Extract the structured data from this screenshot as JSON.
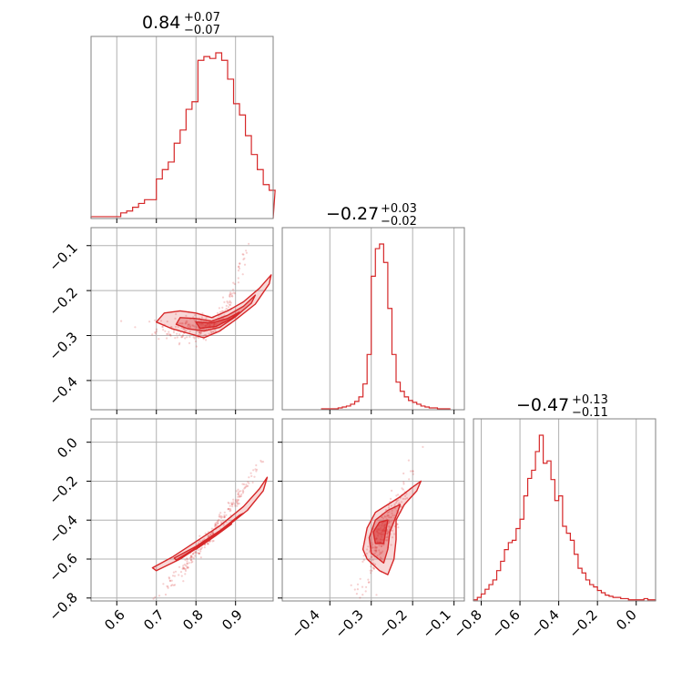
{
  "chart_data": {
    "type": "corner",
    "accent_color": "#d62728",
    "grid": true,
    "ticks": {
      "p0": [
        "0.6",
        "0.7",
        "0.8",
        "0.9"
      ],
      "p1": [
        "−0.4",
        "−0.3",
        "−0.2",
        "−0.1"
      ],
      "p2": [
        "−0.8",
        "−0.6",
        "−0.4",
        "−0.2",
        "0.0"
      ]
    },
    "marginals": [
      {
        "title_main": "0.84",
        "title_plus": "+0.07",
        "title_minus": "−0.07",
        "median": 0.84,
        "err_plus": 0.07,
        "err_minus": 0.07,
        "range": [
          0.535,
          0.995
        ],
        "bins_x": [
          0.535,
          0.55,
          0.565,
          0.58,
          0.595,
          0.61,
          0.625,
          0.64,
          0.655,
          0.67,
          0.685,
          0.7,
          0.715,
          0.73,
          0.745,
          0.76,
          0.775,
          0.79,
          0.805,
          0.82,
          0.835,
          0.85,
          0.865,
          0.88,
          0.895,
          0.91,
          0.925,
          0.94,
          0.955,
          0.97,
          0.985
        ],
        "counts": [
          1,
          1,
          1,
          1,
          1,
          3,
          4,
          6,
          8,
          10,
          10,
          21,
          26,
          30,
          40,
          47,
          58,
          62,
          84,
          86,
          85,
          88,
          84,
          74,
          61,
          55,
          44,
          34,
          26,
          18,
          15
        ]
      },
      {
        "title_main": "−0.27",
        "title_plus": "+0.03",
        "title_minus": "−0.02",
        "median": -0.27,
        "err_plus": 0.03,
        "err_minus": 0.02,
        "range": [
          -0.515,
          -0.075
        ],
        "bins_x": [
          -0.42,
          -0.41,
          -0.4,
          -0.39,
          -0.38,
          -0.37,
          -0.36,
          -0.35,
          -0.34,
          -0.33,
          -0.32,
          -0.31,
          -0.3,
          -0.29,
          -0.28,
          -0.27,
          -0.26,
          -0.25,
          -0.24,
          -0.23,
          -0.22,
          -0.21,
          -0.2,
          -0.19,
          -0.18,
          -0.17,
          -0.16,
          -0.15,
          -0.14,
          -0.13,
          -0.12
        ],
        "counts": [
          1,
          1,
          1,
          1,
          2,
          3,
          4,
          6,
          9,
          14,
          28,
          60,
          145,
          175,
          180,
          160,
          110,
          60,
          30,
          20,
          14,
          10,
          8,
          6,
          4,
          3,
          2,
          2,
          1,
          1,
          1
        ]
      },
      {
        "title_main": "−0.47",
        "title_plus": "+0.13",
        "title_minus": "−0.11",
        "median": -0.47,
        "err_plus": 0.13,
        "err_minus": 0.11,
        "range": [
          -0.84,
          0.1
        ],
        "bins_x": [
          -0.84,
          -0.82,
          -0.8,
          -0.78,
          -0.76,
          -0.74,
          -0.72,
          -0.7,
          -0.68,
          -0.66,
          -0.64,
          -0.62,
          -0.6,
          -0.58,
          -0.56,
          -0.54,
          -0.52,
          -0.5,
          -0.48,
          -0.46,
          -0.44,
          -0.42,
          -0.4,
          -0.38,
          -0.36,
          -0.34,
          -0.32,
          -0.3,
          -0.28,
          -0.26,
          -0.24,
          -0.22,
          -0.2,
          -0.18,
          -0.16,
          -0.14,
          -0.12,
          -0.1,
          -0.08,
          -0.06,
          -0.04,
          -0.02,
          0.0,
          0.02,
          0.04,
          0.06,
          0.08
        ],
        "counts": [
          1,
          3,
          6,
          10,
          14,
          18,
          26,
          34,
          44,
          50,
          52,
          62,
          70,
          90,
          105,
          112,
          128,
          142,
          118,
          120,
          104,
          86,
          90,
          64,
          58,
          52,
          40,
          28,
          24,
          18,
          14,
          12,
          9,
          7,
          5,
          4,
          3,
          3,
          2,
          2,
          1,
          1,
          1,
          1,
          2,
          1,
          1
        ]
      }
    ],
    "pairs": [
      {
        "x_param": 0,
        "y_param": 1,
        "xrange": [
          0.535,
          0.995
        ],
        "yrange": [
          -0.465,
          -0.06
        ],
        "curve": {
          "x0": 0.82,
          "y0": -0.285,
          "k": 6.0,
          "scatter_x": 0.06,
          "scatter_y": 0.015
        },
        "contours": [
          [
            [
              0.72,
              -0.25
            ],
            [
              0.76,
              -0.245
            ],
            [
              0.8,
              -0.25
            ],
            [
              0.84,
              -0.26
            ],
            [
              0.88,
              -0.245
            ],
            [
              0.92,
              -0.225
            ],
            [
              0.96,
              -0.195
            ],
            [
              0.99,
              -0.165
            ],
            [
              0.985,
              -0.185
            ],
            [
              0.95,
              -0.23
            ],
            [
              0.9,
              -0.265
            ],
            [
              0.86,
              -0.29
            ],
            [
              0.82,
              -0.305
            ],
            [
              0.78,
              -0.295
            ],
            [
              0.74,
              -0.285
            ],
            [
              0.7,
              -0.27
            ]
          ],
          [
            [
              0.76,
              -0.26
            ],
            [
              0.8,
              -0.262
            ],
            [
              0.84,
              -0.268
            ],
            [
              0.88,
              -0.255
            ],
            [
              0.92,
              -0.235
            ],
            [
              0.95,
              -0.21
            ],
            [
              0.94,
              -0.228
            ],
            [
              0.9,
              -0.258
            ],
            [
              0.86,
              -0.282
            ],
            [
              0.82,
              -0.29
            ],
            [
              0.78,
              -0.285
            ],
            [
              0.75,
              -0.275
            ]
          ],
          [
            [
              0.8,
              -0.27
            ],
            [
              0.84,
              -0.272
            ],
            [
              0.88,
              -0.262
            ],
            [
              0.91,
              -0.248
            ],
            [
              0.89,
              -0.262
            ],
            [
              0.85,
              -0.28
            ],
            [
              0.81,
              -0.284
            ]
          ]
        ]
      },
      {
        "x_param": 0,
        "y_param": 2,
        "xrange": [
          0.535,
          0.995
        ],
        "yrange": [
          -0.815,
          0.12
        ],
        "curve": {
          "x0": 0.84,
          "y0": -0.47,
          "k": 2.6,
          "scatter_x": 0.07,
          "scatter_y": 0.02
        },
        "contours": [
          [
            [
              0.7,
              -0.66
            ],
            [
              0.76,
              -0.6
            ],
            [
              0.82,
              -0.52
            ],
            [
              0.88,
              -0.43
            ],
            [
              0.93,
              -0.35
            ],
            [
              0.97,
              -0.25
            ],
            [
              0.98,
              -0.18
            ],
            [
              0.96,
              -0.24
            ],
            [
              0.92,
              -0.33
            ],
            [
              0.86,
              -0.43
            ],
            [
              0.8,
              -0.51
            ],
            [
              0.74,
              -0.59
            ],
            [
              0.69,
              -0.645
            ]
          ],
          [
            [
              0.75,
              -0.605
            ],
            [
              0.81,
              -0.53
            ],
            [
              0.87,
              -0.445
            ],
            [
              0.92,
              -0.365
            ],
            [
              0.91,
              -0.375
            ],
            [
              0.86,
              -0.455
            ],
            [
              0.8,
              -0.535
            ],
            [
              0.745,
              -0.595
            ]
          ],
          [
            [
              0.8,
              -0.55
            ],
            [
              0.85,
              -0.48
            ],
            [
              0.89,
              -0.42
            ],
            [
              0.88,
              -0.43
            ],
            [
              0.84,
              -0.49
            ],
            [
              0.795,
              -0.545
            ]
          ]
        ]
      },
      {
        "x_param": 1,
        "y_param": 2,
        "xrange": [
          -0.515,
          -0.075
        ],
        "yrange": [
          -0.815,
          0.12
        ],
        "curve": {
          "x0": -0.27,
          "y0": -0.47,
          "k": 4.2,
          "scatter_x": 0.03,
          "scatter_y": 0.06
        },
        "contours": [
          [
            [
              -0.31,
              -0.6
            ],
            [
              -0.32,
              -0.55
            ],
            [
              -0.31,
              -0.44
            ],
            [
              -0.29,
              -0.36
            ],
            [
              -0.26,
              -0.32
            ],
            [
              -0.23,
              -0.28
            ],
            [
              -0.2,
              -0.23
            ],
            [
              -0.18,
              -0.2
            ],
            [
              -0.19,
              -0.25
            ],
            [
              -0.22,
              -0.32
            ],
            [
              -0.24,
              -0.4
            ],
            [
              -0.24,
              -0.5
            ],
            [
              -0.245,
              -0.6
            ],
            [
              -0.26,
              -0.68
            ],
            [
              -0.28,
              -0.66
            ]
          ],
          [
            [
              -0.3,
              -0.57
            ],
            [
              -0.305,
              -0.49
            ],
            [
              -0.29,
              -0.4
            ],
            [
              -0.26,
              -0.35
            ],
            [
              -0.23,
              -0.32
            ],
            [
              -0.24,
              -0.38
            ],
            [
              -0.255,
              -0.46
            ],
            [
              -0.26,
              -0.55
            ],
            [
              -0.27,
              -0.62
            ]
          ],
          [
            [
              -0.29,
              -0.52
            ],
            [
              -0.295,
              -0.46
            ],
            [
              -0.28,
              -0.41
            ],
            [
              -0.26,
              -0.4
            ],
            [
              -0.265,
              -0.46
            ],
            [
              -0.27,
              -0.52
            ]
          ]
        ]
      }
    ]
  }
}
